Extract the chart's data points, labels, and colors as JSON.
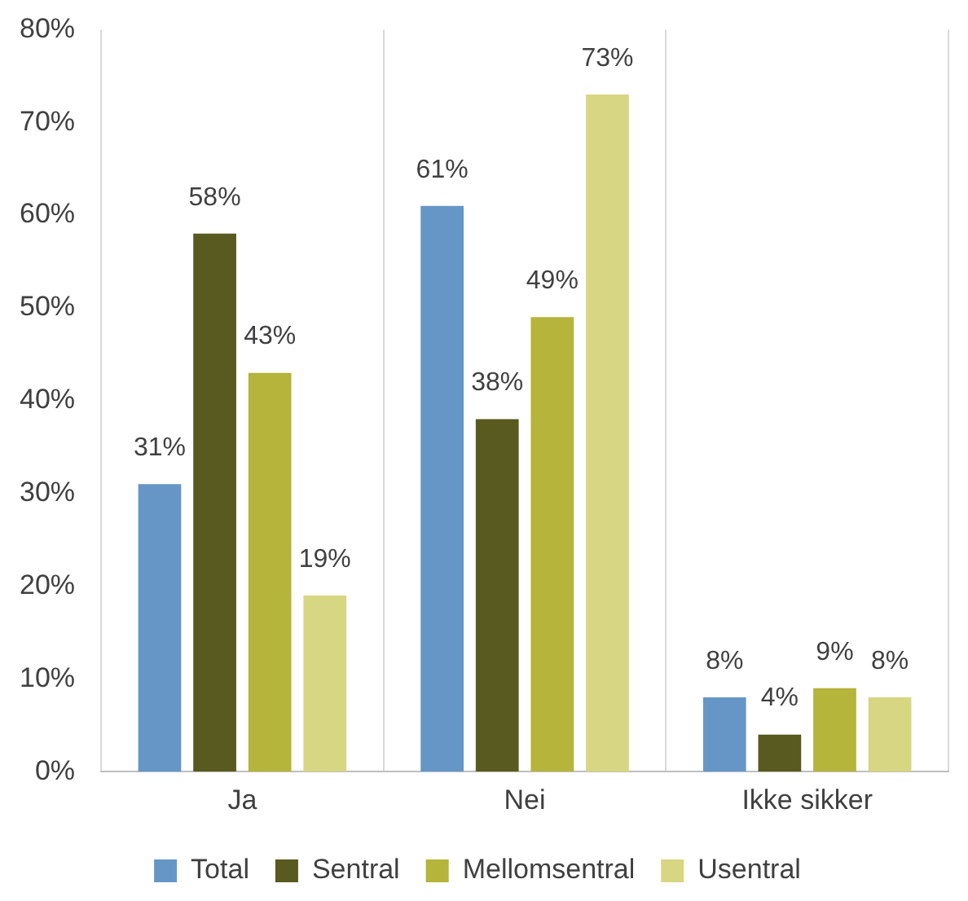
{
  "chart_data": {
    "type": "bar",
    "categories": [
      "Ja",
      "Nei",
      "Ikke sikker"
    ],
    "series": [
      {
        "name": "Total",
        "color": "#6596c6",
        "values": [
          31,
          61,
          8
        ],
        "value_labels": [
          "31%",
          "61%",
          "8%"
        ]
      },
      {
        "name": "Sentral",
        "color": "#585a1f",
        "values": [
          58,
          38,
          4
        ],
        "value_labels": [
          "58%",
          "38%",
          "4%"
        ]
      },
      {
        "name": "Mellomsentral",
        "color": "#b5b43b",
        "values": [
          43,
          49,
          9
        ],
        "value_labels": [
          "43%",
          "49%",
          "9%"
        ]
      },
      {
        "name": "Usentral",
        "color": "#d7d682",
        "values": [
          19,
          73,
          8
        ],
        "value_labels": [
          "19%",
          "73%",
          "8%"
        ]
      }
    ],
    "ylim": [
      0,
      80
    ],
    "yticks": [
      {
        "value": 0,
        "label": "0%"
      },
      {
        "value": 10,
        "label": "10%"
      },
      {
        "value": 20,
        "label": "20%"
      },
      {
        "value": 30,
        "label": "30%"
      },
      {
        "value": 40,
        "label": "40%"
      },
      {
        "value": 50,
        "label": "50%"
      },
      {
        "value": 60,
        "label": "60%"
      },
      {
        "value": 70,
        "label": "70%"
      },
      {
        "value": 80,
        "label": "80%"
      }
    ],
    "grid": "x",
    "legend": "bottom"
  }
}
